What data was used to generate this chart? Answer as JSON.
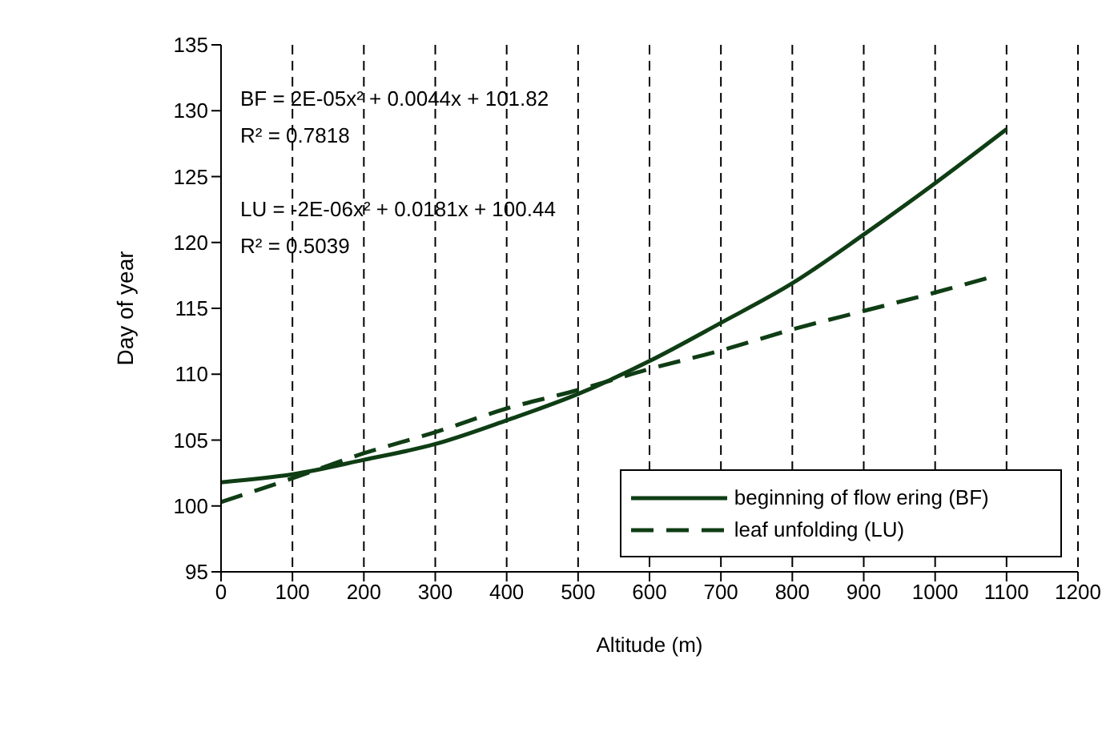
{
  "chart_data": {
    "type": "line",
    "xlabel": "Altitude (m)",
    "ylabel": "Day of year",
    "xlim": [
      0,
      1200
    ],
    "xticks": [
      0,
      100,
      200,
      300,
      400,
      500,
      600,
      700,
      800,
      900,
      1000,
      1100,
      1200
    ],
    "ylim": [
      95,
      135
    ],
    "yticks": [
      95,
      100,
      105,
      110,
      115,
      120,
      125,
      130,
      135
    ],
    "grid": "x",
    "legend": "bottom right",
    "marker": "none",
    "annotations": [
      "BF = 2E-05x² + 0.0044x + 101.82",
      "R² = 0.7818",
      "LU = -2E-06x² + 0.0181x + 100.44",
      "R² = 0.5039"
    ],
    "series": [
      {
        "name": "beginning of flow ering (BF)",
        "color": "#0f3d14",
        "line_style": "solid",
        "x": [
          0,
          100,
          200,
          300,
          400,
          500,
          600,
          700,
          800,
          900,
          1000,
          1100
        ],
        "values": [
          101.8,
          102.4,
          103.5,
          104.7,
          106.5,
          108.5,
          111.0,
          113.9,
          116.9,
          120.6,
          124.5,
          128.6
        ]
      },
      {
        "name": "leaf unfolding (LU)",
        "color": "#0f3d14",
        "line_style": "dashed",
        "x": [
          0,
          100,
          200,
          300,
          400,
          500,
          600,
          700,
          800,
          900,
          1000,
          1080
        ],
        "values": [
          100.3,
          102.1,
          104.0,
          105.6,
          107.4,
          108.8,
          110.4,
          111.8,
          113.4,
          114.8,
          116.2,
          117.4
        ]
      }
    ]
  }
}
